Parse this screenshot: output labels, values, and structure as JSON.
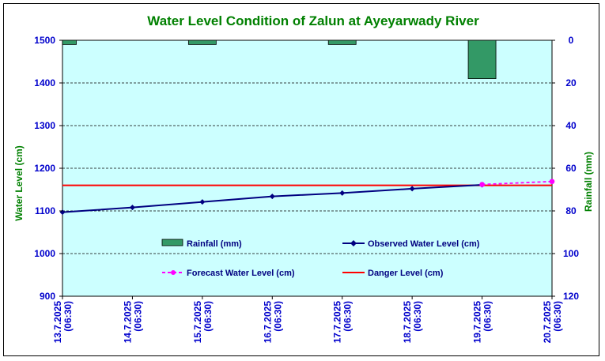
{
  "chart_data": {
    "type": "line",
    "title": "Water Level Condition of Zalun at Ayeyarwady River",
    "ylabel": "Water Level (cm)",
    "y2label": "Rainfall (mm)",
    "ylim": [
      900,
      1500
    ],
    "y2lim": [
      0,
      120
    ],
    "y2_inverted": true,
    "yticks": [
      "900",
      "1000",
      "1100",
      "1200",
      "1300",
      "1400",
      "1500"
    ],
    "y2ticks": [
      "0",
      "20",
      "40",
      "60",
      "80",
      "100",
      "120"
    ],
    "categories": [
      [
        "13.7.2025",
        "(06:30)"
      ],
      [
        "14.7.2025",
        "(06:30)"
      ],
      [
        "15.7.2025",
        "(06:30)"
      ],
      [
        "16.7.2025",
        "(06:30)"
      ],
      [
        "17.7.2025",
        "(06:30)"
      ],
      [
        "18.7.2025",
        "(06:30)"
      ],
      [
        "19.7.2025",
        "(06:30)"
      ],
      [
        "20.7.2025",
        "(06:30)"
      ]
    ],
    "grid": true,
    "legend_position": "inside-lower",
    "rainfall": {
      "name": "Rainfall (mm)",
      "values": [
        2,
        0,
        2,
        0,
        2,
        0,
        18,
        0
      ],
      "color": "#339966"
    },
    "observed": {
      "name": "Observed Water Level (cm)",
      "values": [
        1097,
        1108,
        1121,
        1134,
        1142,
        1152,
        1161,
        null
      ],
      "color": "#000080"
    },
    "forecast": {
      "name": "Forecast Water Level (cm)",
      "values": [
        null,
        null,
        null,
        null,
        null,
        null,
        1162,
        1169
      ],
      "color": "#ff00ff"
    },
    "danger": {
      "name": "Danger Level (cm)",
      "value": 1160,
      "color": "#ff0000"
    },
    "colors": {
      "plot_bg": "#ccffff",
      "title": "#008000",
      "axis_left": "#0000cc",
      "axis_right": "#0000cc",
      "ylabel": "#008000",
      "xtick": "#0000cc"
    }
  }
}
